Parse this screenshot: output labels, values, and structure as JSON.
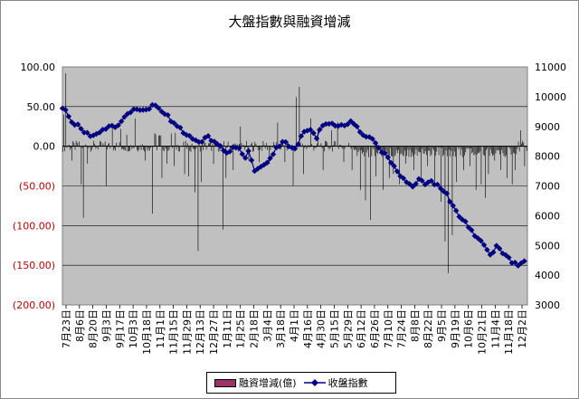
{
  "title": "大盤指數與融資增減",
  "chart_data": {
    "type": "bar+line",
    "title": "大盤指數與融資增減",
    "x_tick_labels": [
      "7月23日",
      "8月6日",
      "8月20日",
      "9月3日",
      "9月17日",
      "10月3日",
      "10月18日",
      "11月1日",
      "11月15日",
      "11月29日",
      "12月13日",
      "12月27日",
      "1月11日",
      "1月25日",
      "2月18日",
      "3月4日",
      "3月18日",
      "4月1日",
      "4月16日",
      "4月30日",
      "5月15日",
      "5月29日",
      "6月12日",
      "6月26日",
      "7月10日",
      "7月24日",
      "8月8日",
      "8月22日",
      "9月5日",
      "9月19日",
      "10月6日",
      "10月21日",
      "11月4日",
      "11月18日",
      "12月2日"
    ],
    "y_left": {
      "ticks": [
        "100.00",
        "50.00",
        "0.00",
        "(50.00)",
        "(100.00)",
        "(150.00)",
        "(200.00)"
      ],
      "range": [
        -200,
        100
      ]
    },
    "y_right": {
      "ticks": [
        "11000",
        "10000",
        "9000",
        "8000",
        "7000",
        "6000",
        "5000",
        "4000",
        "3000"
      ],
      "range": [
        3000,
        11000
      ]
    },
    "series": [
      {
        "name": "融資增減(億)",
        "type": "bar",
        "color": "#000000",
        "spikes": [
          [
            1,
            40
          ],
          [
            3,
            92
          ],
          [
            9,
            -18
          ],
          [
            18,
            -48
          ],
          [
            20,
            -90
          ],
          [
            24,
            -22
          ],
          [
            42,
            -50
          ],
          [
            48,
            25
          ],
          [
            56,
            22
          ],
          [
            70,
            35
          ],
          [
            80,
            -18
          ],
          [
            87,
            -85
          ],
          [
            96,
            -40
          ],
          [
            101,
            -22
          ],
          [
            108,
            -25
          ],
          [
            118,
            -35
          ],
          [
            122,
            -38
          ],
          [
            128,
            -58
          ],
          [
            131,
            -132
          ],
          [
            134,
            -45
          ],
          [
            146,
            -22
          ],
          [
            155,
            -105
          ],
          [
            158,
            -40
          ],
          [
            165,
            -30
          ],
          [
            172,
            25
          ],
          [
            180,
            -18
          ],
          [
            190,
            -20
          ],
          [
            200,
            -22
          ],
          [
            208,
            30
          ],
          [
            215,
            -20
          ],
          [
            223,
            -50
          ],
          [
            226,
            62
          ],
          [
            229,
            75
          ],
          [
            233,
            -35
          ],
          [
            240,
            35
          ],
          [
            247,
            22
          ],
          [
            252,
            -30
          ],
          [
            260,
            20
          ],
          [
            266,
            30
          ],
          [
            272,
            -20
          ],
          [
            280,
            -30
          ],
          [
            288,
            -55
          ],
          [
            293,
            -68
          ],
          [
            298,
            -93
          ],
          [
            303,
            -38
          ],
          [
            310,
            -55
          ],
          [
            316,
            -40
          ],
          [
            320,
            -35
          ],
          [
            326,
            -48
          ],
          [
            332,
            -22
          ],
          [
            340,
            -30
          ],
          [
            347,
            -40
          ],
          [
            353,
            -25
          ],
          [
            360,
            -50
          ],
          [
            366,
            -70
          ],
          [
            370,
            -120
          ],
          [
            373,
            -160
          ],
          [
            377,
            -112
          ],
          [
            381,
            -45
          ],
          [
            388,
            -30
          ],
          [
            394,
            -25
          ],
          [
            400,
            -55
          ],
          [
            405,
            -48
          ],
          [
            409,
            -65
          ],
          [
            412,
            -35
          ],
          [
            418,
            -18
          ],
          [
            424,
            -30
          ],
          [
            430,
            -40
          ],
          [
            435,
            -48
          ],
          [
            438,
            -30
          ],
          [
            443,
            20
          ],
          [
            447,
            -25
          ]
        ],
        "count": 450
      },
      {
        "name": "收盤指數",
        "type": "line",
        "color": "#000080",
        "knots": [
          [
            0,
            9650
          ],
          [
            4,
            9450
          ],
          [
            8,
            9100
          ],
          [
            15,
            9050
          ],
          [
            22,
            8800
          ],
          [
            30,
            8650
          ],
          [
            40,
            8950
          ],
          [
            52,
            9000
          ],
          [
            60,
            9350
          ],
          [
            70,
            9650
          ],
          [
            80,
            9550
          ],
          [
            90,
            9750
          ],
          [
            100,
            9400
          ],
          [
            110,
            9050
          ],
          [
            120,
            8750
          ],
          [
            128,
            8600
          ],
          [
            135,
            8450
          ],
          [
            140,
            8700
          ],
          [
            150,
            8400
          ],
          [
            160,
            8050
          ],
          [
            166,
            8300
          ],
          [
            172,
            8200
          ],
          [
            176,
            7950
          ],
          [
            180,
            8150
          ],
          [
            186,
            7550
          ],
          [
            192,
            7650
          ],
          [
            200,
            7800
          ],
          [
            206,
            8250
          ],
          [
            214,
            8500
          ],
          [
            220,
            8350
          ],
          [
            226,
            8200
          ],
          [
            232,
            8750
          ],
          [
            238,
            8900
          ],
          [
            246,
            8650
          ],
          [
            252,
            9050
          ],
          [
            260,
            9100
          ],
          [
            268,
            9000
          ],
          [
            274,
            9050
          ],
          [
            280,
            9200
          ],
          [
            286,
            8900
          ],
          [
            292,
            8700
          ],
          [
            300,
            8600
          ],
          [
            306,
            8300
          ],
          [
            312,
            8050
          ],
          [
            318,
            7800
          ],
          [
            325,
            7450
          ],
          [
            332,
            7100
          ],
          [
            340,
            6950
          ],
          [
            346,
            7250
          ],
          [
            352,
            7050
          ],
          [
            358,
            7150
          ],
          [
            366,
            6900
          ],
          [
            372,
            6750
          ],
          [
            378,
            6300
          ],
          [
            384,
            6000
          ],
          [
            390,
            5800
          ],
          [
            396,
            5500
          ],
          [
            402,
            5250
          ],
          [
            408,
            5000
          ],
          [
            414,
            4700
          ],
          [
            420,
            4950
          ],
          [
            428,
            4700
          ],
          [
            434,
            4500
          ],
          [
            440,
            4300
          ],
          [
            446,
            4450
          ]
        ]
      }
    ],
    "legend": "bottom",
    "grid": "horizontal",
    "background": "#c0c0c0"
  }
}
